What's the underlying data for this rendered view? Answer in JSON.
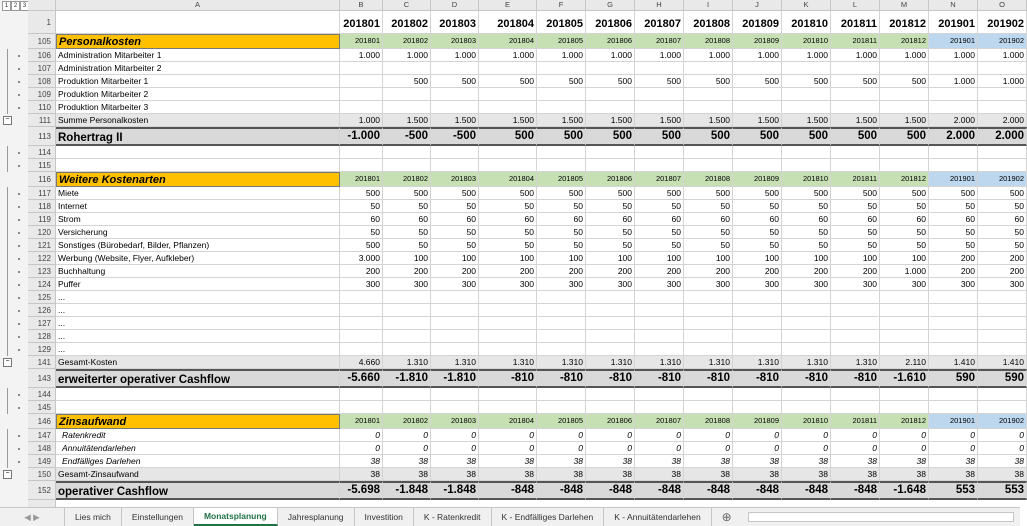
{
  "outline_levels": [
    "1",
    "2",
    "3"
  ],
  "columns": [
    "A",
    "B",
    "C",
    "D",
    "E",
    "F",
    "G",
    "H",
    "I",
    "J",
    "K",
    "L",
    "M",
    "N",
    "O"
  ],
  "header_row": {
    "number": "1",
    "cells": [
      "201801",
      "201802",
      "201803",
      "201804",
      "201805",
      "201806",
      "201807",
      "201808",
      "201809",
      "201810",
      "201811",
      "201812",
      "201901",
      "201902"
    ]
  },
  "rows": [
    {
      "number": "105",
      "label": "Personalkosten",
      "style": "section",
      "cells": [
        "201801",
        "201802",
        "201803",
        "201804",
        "201805",
        "201806",
        "201807",
        "201808",
        "201809",
        "201810",
        "201811",
        "201812",
        "201901",
        "201902"
      ]
    },
    {
      "number": "106",
      "label": "Administration Mitarbeiter 1",
      "cells": [
        "1.000",
        "1.000",
        "1.000",
        "1.000",
        "1.000",
        "1.000",
        "1.000",
        "1.000",
        "1.000",
        "1.000",
        "1.000",
        "1.000",
        "1.000",
        "1.000"
      ]
    },
    {
      "number": "107",
      "label": "Administration Mitarbeiter 2"
    },
    {
      "number": "108",
      "label": "Produktion Mitarbeiter 1",
      "cells": [
        null,
        "500",
        "500",
        "500",
        "500",
        "500",
        "500",
        "500",
        "500",
        "500",
        "500",
        "500",
        "1.000",
        "1.000"
      ]
    },
    {
      "number": "109",
      "label": "Produktion Mitarbeiter 2"
    },
    {
      "number": "110",
      "label": "Produktion Mitarbeiter 3"
    },
    {
      "number": "111",
      "label": "Summe Personalkosten",
      "style": "sum",
      "cells": [
        "1.000",
        "1.500",
        "1.500",
        "1.500",
        "1.500",
        "1.500",
        "1.500",
        "1.500",
        "1.500",
        "1.500",
        "1.500",
        "1.500",
        "2.000",
        "2.000"
      ]
    },
    {
      "number": "113",
      "label": "Rohertrag II",
      "style": "total",
      "cells": [
        "-1.000",
        "-500",
        "-500",
        "500",
        "500",
        "500",
        "500",
        "500",
        "500",
        "500",
        "500",
        "500",
        "2.000",
        "2.000"
      ]
    },
    {
      "number": "114"
    },
    {
      "number": "115"
    },
    {
      "number": "116",
      "label": "Weitere Kostenarten",
      "style": "section",
      "cells": [
        "201801",
        "201802",
        "201803",
        "201804",
        "201805",
        "201806",
        "201807",
        "201808",
        "201809",
        "201810",
        "201811",
        "201812",
        "201901",
        "201902"
      ]
    },
    {
      "number": "117",
      "label": "Miete",
      "cells": [
        "500",
        "500",
        "500",
        "500",
        "500",
        "500",
        "500",
        "500",
        "500",
        "500",
        "500",
        "500",
        "500",
        "500"
      ]
    },
    {
      "number": "118",
      "label": "Internet",
      "cells": [
        "50",
        "50",
        "50",
        "50",
        "50",
        "50",
        "50",
        "50",
        "50",
        "50",
        "50",
        "50",
        "50",
        "50"
      ]
    },
    {
      "number": "119",
      "label": "Strom",
      "cells": [
        "60",
        "60",
        "60",
        "60",
        "60",
        "60",
        "60",
        "60",
        "60",
        "60",
        "60",
        "60",
        "60",
        "60"
      ]
    },
    {
      "number": "120",
      "label": "Versicherung",
      "cells": [
        "50",
        "50",
        "50",
        "50",
        "50",
        "50",
        "50",
        "50",
        "50",
        "50",
        "50",
        "50",
        "50",
        "50"
      ]
    },
    {
      "number": "121",
      "label": "Sonstiges (Bürobedarf, Bilder, Pflanzen)",
      "cells": [
        "500",
        "50",
        "50",
        "50",
        "50",
        "50",
        "50",
        "50",
        "50",
        "50",
        "50",
        "50",
        "50",
        "50"
      ]
    },
    {
      "number": "122",
      "label": "Werbung (Website, Flyer, Aufkleber)",
      "cells": [
        "3.000",
        "100",
        "100",
        "100",
        "100",
        "100",
        "100",
        "100",
        "100",
        "100",
        "100",
        "100",
        "200",
        "200"
      ]
    },
    {
      "number": "123",
      "label": "Buchhaltung",
      "cells": [
        "200",
        "200",
        "200",
        "200",
        "200",
        "200",
        "200",
        "200",
        "200",
        "200",
        "200",
        "1.000",
        "200",
        "200"
      ]
    },
    {
      "number": "124",
      "label": "Puffer",
      "cells": [
        "300",
        "300",
        "300",
        "300",
        "300",
        "300",
        "300",
        "300",
        "300",
        "300",
        "300",
        "300",
        "300",
        "300"
      ]
    },
    {
      "number": "125",
      "label": "..."
    },
    {
      "number": "126",
      "label": "..."
    },
    {
      "number": "127",
      "label": "..."
    },
    {
      "number": "128",
      "label": "..."
    },
    {
      "number": "129",
      "label": "..."
    },
    {
      "number": "141",
      "label": "Gesamt-Kosten",
      "style": "sum",
      "cells": [
        "4.660",
        "1.310",
        "1.310",
        "1.310",
        "1.310",
        "1.310",
        "1.310",
        "1.310",
        "1.310",
        "1.310",
        "1.310",
        "2.110",
        "1.410",
        "1.410"
      ]
    },
    {
      "number": "143",
      "label": "erweiterter operativer Cashflow",
      "style": "total",
      "cells": [
        "-5.660",
        "-1.810",
        "-1.810",
        "-810",
        "-810",
        "-810",
        "-810",
        "-810",
        "-810",
        "-810",
        "-810",
        "-1.610",
        "590",
        "590"
      ]
    },
    {
      "number": "144"
    },
    {
      "number": "145"
    },
    {
      "number": "146",
      "label": "Zinsaufwand",
      "style": "section",
      "cells": [
        "201801",
        "201802",
        "201803",
        "201804",
        "201805",
        "201806",
        "201807",
        "201808",
        "201809",
        "201810",
        "201811",
        "201812",
        "201901",
        "201902"
      ]
    },
    {
      "number": "147",
      "label": "Ratenkredit",
      "style": "italic",
      "cells": [
        "0",
        "0",
        "0",
        "0",
        "0",
        "0",
        "0",
        "0",
        "0",
        "0",
        "0",
        "0",
        "0",
        "0"
      ]
    },
    {
      "number": "148",
      "label": "Annuitätendarlehen",
      "style": "italic",
      "cells": [
        "0",
        "0",
        "0",
        "0",
        "0",
        "0",
        "0",
        "0",
        "0",
        "0",
        "0",
        "0",
        "0",
        "0"
      ]
    },
    {
      "number": "149",
      "label": "Endfälliges Darlehen",
      "style": "italic",
      "cells": [
        "38",
        "38",
        "38",
        "38",
        "38",
        "38",
        "38",
        "38",
        "38",
        "38",
        "38",
        "38",
        "38",
        "38"
      ]
    },
    {
      "number": "150",
      "label": "Gesamt-Zinsaufwand",
      "style": "sum",
      "cells": [
        "38",
        "38",
        "38",
        "38",
        "38",
        "38",
        "38",
        "38",
        "38",
        "38",
        "38",
        "38",
        "38",
        "38"
      ]
    },
    {
      "number": "152",
      "label": "operativer Cashflow",
      "style": "total",
      "cells": [
        "-5.698",
        "-1.848",
        "-1.848",
        "-848",
        "-848",
        "-848",
        "-848",
        "-848",
        "-848",
        "-848",
        "-848",
        "-1.648",
        "553",
        "553"
      ]
    }
  ],
  "tabs": [
    "Lies mich",
    "Einstellungen",
    "Monatsplanung",
    "Jahresplanung",
    "Investition",
    "K - Ratenkredit",
    "K - Endfälliges Darlehen",
    "K - Annuitätendarlehen"
  ],
  "active_tab": 2
}
